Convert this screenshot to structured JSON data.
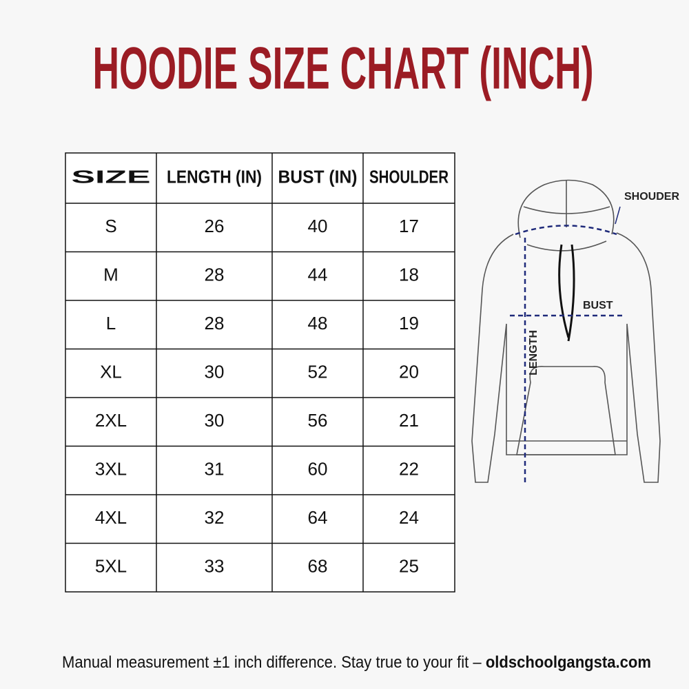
{
  "header": {
    "title": "HOODIE SIZE CHART (INCH)"
  },
  "table": {
    "columns": [
      "SIZE",
      "LENGTH (IN)",
      "BUST (IN)",
      "SHOULDER"
    ],
    "rows": [
      [
        "S",
        26,
        40,
        17
      ],
      [
        "M",
        28,
        44,
        18
      ],
      [
        "L",
        28,
        48,
        19
      ],
      [
        "XL",
        30,
        52,
        20
      ],
      [
        "2XL",
        30,
        56,
        21
      ],
      [
        "3XL",
        31,
        60,
        22
      ],
      [
        "4XL",
        32,
        64,
        24
      ],
      [
        "5XL",
        33,
        68,
        25
      ]
    ]
  },
  "diagram": {
    "labels": [
      "SHOUDER",
      "BUST",
      "LENGTH"
    ]
  },
  "footer": {
    "note": "Manual measurement ±1 inch difference. Stay true to your fit –",
    "site": "oldschoolgangsta.com"
  }
}
